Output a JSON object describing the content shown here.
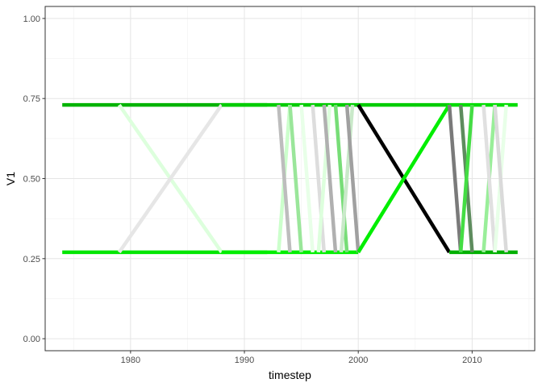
{
  "chart_data": {
    "type": "line",
    "title": "",
    "xlabel": "timestep",
    "ylabel": "V1",
    "xlim": [
      1972.5,
      2015.5
    ],
    "ylim": [
      -0.0375,
      1.0375
    ],
    "x_ticks": [
      1980,
      1990,
      2000,
      2010
    ],
    "x_tick_labels": [
      "1980",
      "1990",
      "2000",
      "2010"
    ],
    "y_ticks": [
      0,
      0.25,
      0.5,
      0.75,
      1
    ],
    "y_tick_labels": [
      "0.00",
      "0.25",
      "0.50",
      "0.75",
      "1.00"
    ],
    "grid": true,
    "legend": "none",
    "series": [
      {
        "color": "#00B300",
        "x": [
          1974,
          1992
        ],
        "y": [
          0.73,
          0.73
        ]
      },
      {
        "color": "#00E600",
        "x": [
          1974,
          1992
        ],
        "y": [
          0.27,
          0.27
        ]
      },
      {
        "color": "#DDFFDD",
        "x": [
          1979,
          1988
        ],
        "y": [
          0.73,
          0.27
        ]
      },
      {
        "color": "#E6E6E6",
        "x": [
          1979,
          1988
        ],
        "y": [
          0.27,
          0.73
        ]
      },
      {
        "color": "#00CC00",
        "x": [
          1988,
          2008
        ],
        "y": [
          0.73,
          0.73
        ]
      },
      {
        "color": "#00EE00",
        "x": [
          1988,
          2000
        ],
        "y": [
          0.27,
          0.27
        ]
      },
      {
        "color": "#CCFFCC",
        "x": [
          1993,
          1994
        ],
        "y": [
          0.27,
          0.73
        ]
      },
      {
        "color": "#BDBDBD",
        "x": [
          1993,
          1994
        ],
        "y": [
          0.73,
          0.27
        ]
      },
      {
        "color": "#9AE69A",
        "x": [
          1994,
          1995
        ],
        "y": [
          0.73,
          0.27
        ]
      },
      {
        "color": "#E8FFE8",
        "x": [
          1995,
          1996
        ],
        "y": [
          0.73,
          0.27
        ]
      },
      {
        "color": "#DDDDDD",
        "x": [
          1996,
          1997
        ],
        "y": [
          0.73,
          0.27
        ]
      },
      {
        "color": "#DDFFDD",
        "x": [
          1996.5,
          1997.5
        ],
        "y": [
          0.27,
          0.73
        ]
      },
      {
        "color": "#B0B0B0",
        "x": [
          1997,
          1998
        ],
        "y": [
          0.73,
          0.27
        ]
      },
      {
        "color": "#77DD77",
        "x": [
          1998,
          1999
        ],
        "y": [
          0.73,
          0.27
        ]
      },
      {
        "color": "#C9E9C9",
        "x": [
          1998.5,
          1999.5
        ],
        "y": [
          0.27,
          0.73
        ]
      },
      {
        "color": "#A0A0A0",
        "x": [
          1999,
          2000
        ],
        "y": [
          0.73,
          0.27
        ]
      },
      {
        "color": "#000000",
        "x": [
          2000,
          2008
        ],
        "y": [
          0.73,
          0.27
        ]
      },
      {
        "color": "#00EE00",
        "x": [
          2000,
          2008
        ],
        "y": [
          0.27,
          0.73
        ]
      },
      {
        "color": "#00DD00",
        "x": [
          2008,
          2014
        ],
        "y": [
          0.73,
          0.73
        ]
      },
      {
        "color": "#00B000",
        "x": [
          2008,
          2014
        ],
        "y": [
          0.27,
          0.27
        ]
      },
      {
        "color": "#7A7A7A",
        "x": [
          2008,
          2009
        ],
        "y": [
          0.73,
          0.27
        ]
      },
      {
        "color": "#5E8C5E",
        "x": [
          2009,
          2010
        ],
        "y": [
          0.73,
          0.27
        ]
      },
      {
        "color": "#44DD44",
        "x": [
          2009,
          2010
        ],
        "y": [
          0.27,
          0.73
        ]
      },
      {
        "color": "#99EE99",
        "x": [
          2011,
          2012
        ],
        "y": [
          0.27,
          0.73
        ]
      },
      {
        "color": "#E0E0E0",
        "x": [
          2011,
          2012
        ],
        "y": [
          0.73,
          0.27
        ]
      },
      {
        "color": "#E8FFE8",
        "x": [
          2012,
          2013
        ],
        "y": [
          0.27,
          0.73
        ]
      },
      {
        "color": "#DADADA",
        "x": [
          2012,
          2013
        ],
        "y": [
          0.73,
          0.27
        ]
      }
    ]
  }
}
